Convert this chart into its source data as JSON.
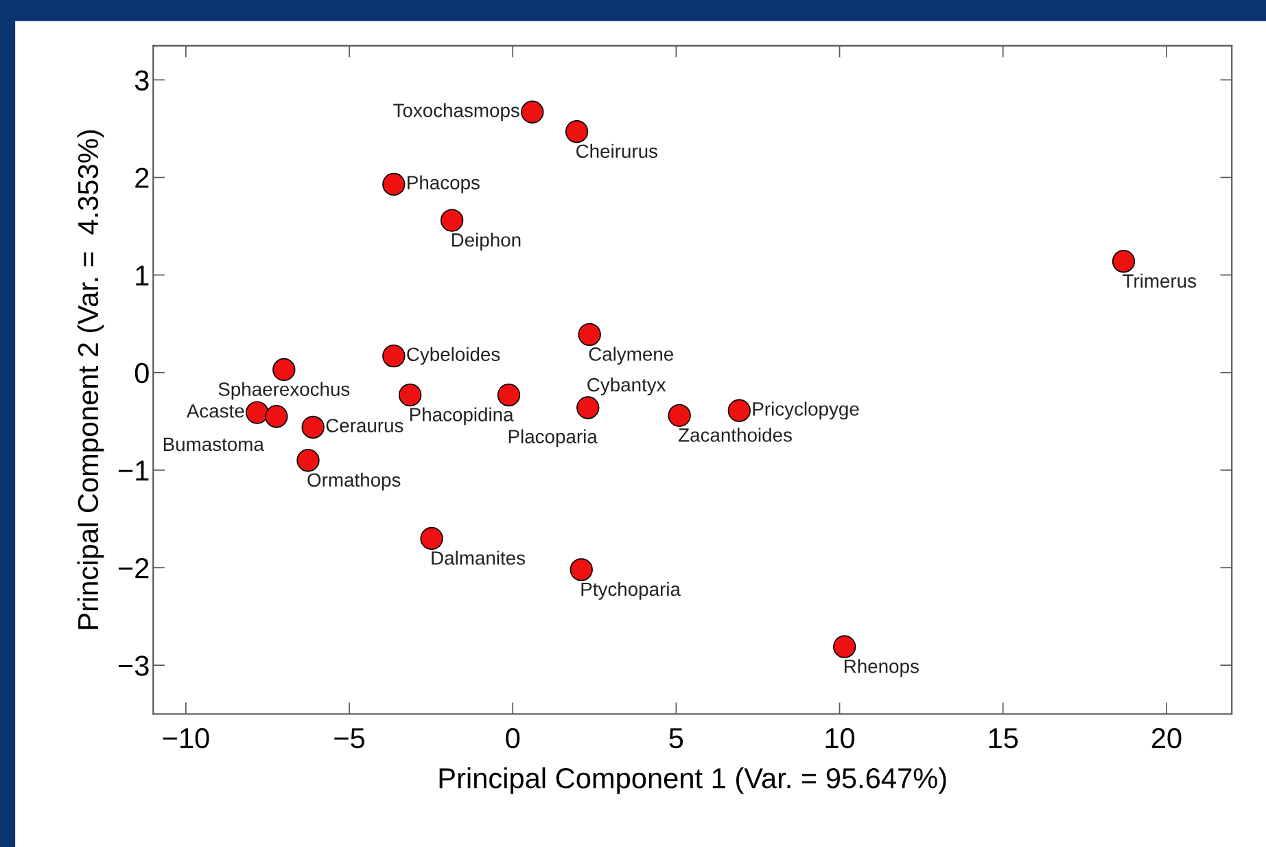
{
  "chart_data": {
    "type": "scatter",
    "xlabel": "Principal Component 1 (Var. = 95.647%)",
    "ylabel": "Principal Component 2 (Var. =  4.353%)",
    "xlim": [
      -11,
      22
    ],
    "ylim": [
      -3.5,
      3.35
    ],
    "xticks": [
      -10,
      -5,
      0,
      5,
      10,
      15,
      20
    ],
    "yticks": [
      -3,
      -2,
      -1,
      0,
      1,
      2,
      3
    ],
    "grid": false,
    "marker": "circle",
    "series": [
      {
        "color": "#ee1111",
        "x": [
          0.6,
          1.96,
          -3.64,
          -1.86,
          18.69,
          2.35,
          -3.64,
          -7.0,
          -3.14,
          -0.12,
          2.3,
          5.1,
          6.93,
          -7.82,
          -7.23,
          -6.11,
          -6.26,
          -2.48,
          2.1,
          10.15
        ],
        "values": [
          2.67,
          2.47,
          1.93,
          1.56,
          1.14,
          0.39,
          0.17,
          0.03,
          -0.23,
          -0.23,
          -0.36,
          -0.44,
          -0.39,
          -0.41,
          -0.45,
          -0.56,
          -0.9,
          -1.7,
          -2.02,
          -2.81
        ]
      }
    ],
    "annotations": [
      {
        "text": "Toxochasmops",
        "x": 0.6,
        "y": 2.67
      },
      {
        "text": "Cheirurus",
        "x": 1.96,
        "y": 2.47
      },
      {
        "text": "Phacops",
        "x": -3.64,
        "y": 1.93
      },
      {
        "text": "Deiphon",
        "x": -1.86,
        "y": 1.56
      },
      {
        "text": "Trimerus",
        "x": 18.69,
        "y": 1.14
      },
      {
        "text": "Calymene",
        "x": 2.35,
        "y": 0.39
      },
      {
        "text": "Cybeloides",
        "x": -3.64,
        "y": 0.17
      },
      {
        "text": "Sphaerexochus",
        "x": -7.0,
        "y": 0.03
      },
      {
        "text": "Phacopidina",
        "x": -3.14,
        "y": -0.23
      },
      {
        "text": "Placoparia",
        "x": -0.12,
        "y": -0.23
      },
      {
        "text": "Cybantyx",
        "x": 2.3,
        "y": -0.36
      },
      {
        "text": "Zacanthoides",
        "x": 5.1,
        "y": -0.44
      },
      {
        "text": "Pricyclopyge",
        "x": 6.93,
        "y": -0.39
      },
      {
        "text": "Acaste",
        "x": -7.82,
        "y": -0.41
      },
      {
        "text": "Bumastoma",
        "x": -7.23,
        "y": -0.45
      },
      {
        "text": "Ceraurus",
        "x": -6.11,
        "y": -0.56
      },
      {
        "text": "Ormathops",
        "x": -6.26,
        "y": -0.9
      },
      {
        "text": "Dalmanites",
        "x": -2.48,
        "y": -1.7
      },
      {
        "text": "Ptychoparia",
        "x": 2.1,
        "y": -2.02
      },
      {
        "text": "Rhenops",
        "x": 10.15,
        "y": -2.81
      }
    ]
  }
}
